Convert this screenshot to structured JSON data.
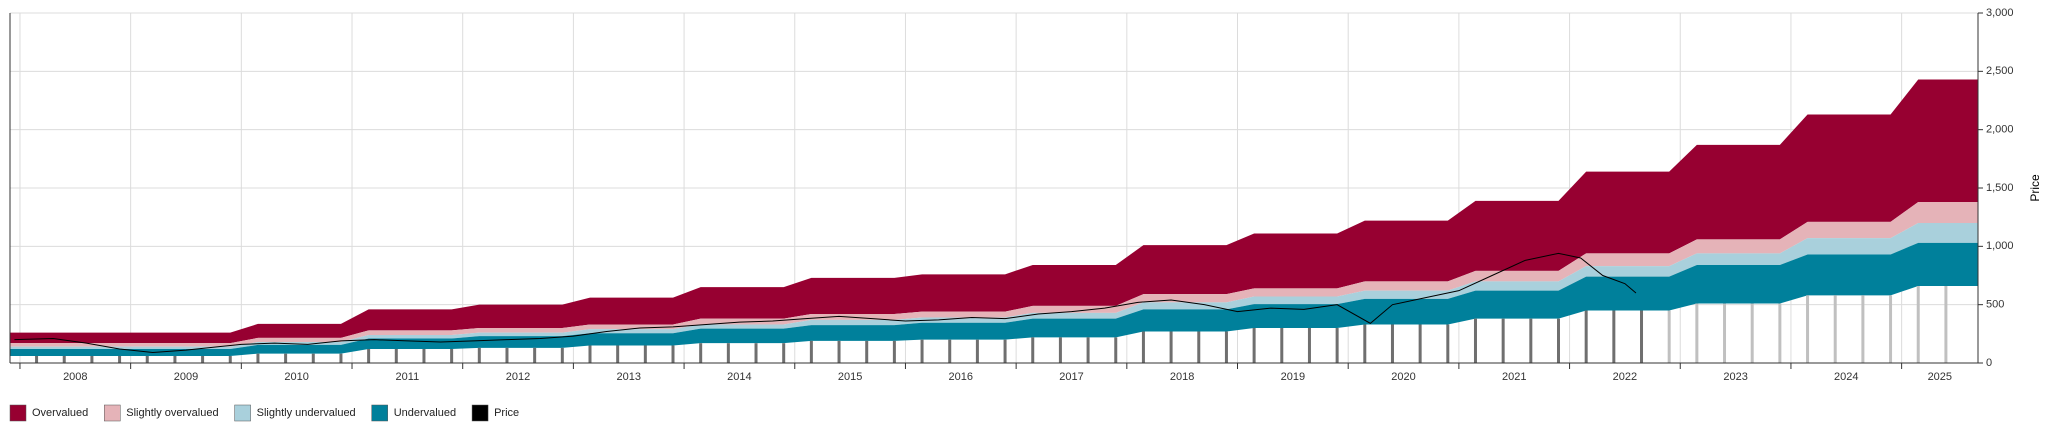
{
  "chart_data": {
    "type": "area",
    "x": [
      2007.91,
      2008.9,
      2009.15,
      2009.9,
      2010.15,
      2010.9,
      2011.15,
      2011.9,
      2012.15,
      2012.9,
      2013.15,
      2013.9,
      2014.15,
      2014.9,
      2015.15,
      2015.9,
      2016.15,
      2016.9,
      2017.15,
      2017.9,
      2018.15,
      2018.9,
      2019.15,
      2019.9,
      2020.15,
      2020.9,
      2021.15,
      2021.9,
      2022.15,
      2022.9,
      2023.15,
      2023.9,
      2024.15,
      2024.9,
      2025.15,
      2025.69
    ],
    "series": [
      {
        "name": "Overvalued",
        "color": "#970031",
        "values": [
          260,
          260,
          260,
          260,
          335,
          335,
          460,
          460,
          500,
          500,
          560,
          560,
          650,
          650,
          730,
          730,
          760,
          760,
          840,
          840,
          1010,
          1010,
          1110,
          1110,
          1220,
          1220,
          1390,
          1390,
          1640,
          1640,
          1870,
          1870,
          2130,
          2130,
          2430,
          2430
        ],
        "low": [
          170,
          170,
          170,
          170,
          215,
          215,
          280,
          280,
          300,
          300,
          330,
          330,
          380,
          380,
          420,
          420,
          440,
          440,
          490,
          490,
          590,
          590,
          640,
          640,
          700,
          700,
          790,
          790,
          940,
          940,
          1060,
          1060,
          1210,
          1210,
          1380,
          1380
        ]
      },
      {
        "name": "Slightly overvalued",
        "color": "#e5b3b8",
        "values": [
          170,
          170,
          170,
          170,
          215,
          215,
          280,
          280,
          300,
          300,
          330,
          330,
          380,
          380,
          420,
          420,
          440,
          440,
          490,
          490,
          590,
          590,
          640,
          640,
          700,
          700,
          790,
          790,
          940,
          940,
          1060,
          1060,
          1210,
          1210,
          1380,
          1380
        ],
        "low": [
          140,
          140,
          140,
          140,
          180,
          180,
          240,
          240,
          260,
          260,
          290,
          290,
          330,
          330,
          370,
          370,
          390,
          390,
          430,
          430,
          520,
          520,
          570,
          570,
          620,
          620,
          700,
          700,
          830,
          830,
          940,
          940,
          1070,
          1070,
          1200,
          1200
        ]
      },
      {
        "name": "Slightly undervalued",
        "color": "#a9d0dc",
        "values": [
          140,
          140,
          140,
          140,
          180,
          180,
          240,
          240,
          260,
          260,
          290,
          290,
          330,
          330,
          370,
          370,
          390,
          390,
          430,
          430,
          520,
          520,
          570,
          570,
          620,
          620,
          700,
          700,
          830,
          830,
          940,
          940,
          1070,
          1070,
          1200,
          1200
        ],
        "low": [
          120,
          120,
          120,
          120,
          155,
          155,
          210,
          210,
          230,
          230,
          255,
          255,
          295,
          295,
          325,
          325,
          345,
          345,
          380,
          380,
          460,
          460,
          505,
          505,
          550,
          550,
          620,
          620,
          740,
          740,
          840,
          840,
          930,
          930,
          1030,
          1030
        ]
      },
      {
        "name": "Undervalued",
        "color": "#00809b",
        "values": [
          120,
          120,
          120,
          120,
          155,
          155,
          210,
          210,
          230,
          230,
          255,
          255,
          295,
          295,
          325,
          325,
          345,
          345,
          380,
          380,
          460,
          460,
          505,
          505,
          550,
          550,
          620,
          620,
          740,
          740,
          840,
          840,
          930,
          930,
          1030,
          1030
        ],
        "low": [
          60,
          60,
          60,
          60,
          80,
          80,
          120,
          120,
          130,
          130,
          150,
          150,
          170,
          170,
          190,
          190,
          200,
          200,
          220,
          220,
          270,
          270,
          300,
          300,
          330,
          330,
          380,
          380,
          450,
          450,
          510,
          510,
          580,
          580,
          660,
          660
        ]
      },
      {
        "name": "Price",
        "color": "#000000",
        "x": [
          2007.95,
          2008.3,
          2008.6,
          2008.9,
          2009.2,
          2009.5,
          2009.8,
          2010.0,
          2010.3,
          2010.6,
          2010.9,
          2011.2,
          2011.5,
          2011.8,
          2012.1,
          2012.4,
          2012.7,
          2013.0,
          2013.3,
          2013.6,
          2013.9,
          2014.2,
          2014.5,
          2014.8,
          2015.1,
          2015.4,
          2015.7,
          2016.0,
          2016.3,
          2016.6,
          2016.9,
          2017.2,
          2017.5,
          2017.8,
          2018.1,
          2018.4,
          2018.7,
          2019.0,
          2019.3,
          2019.6,
          2019.9,
          2020.2,
          2020.4,
          2020.7,
          2021.0,
          2021.3,
          2021.6,
          2021.9,
          2022.1,
          2022.3,
          2022.5,
          2022.6
        ],
        "values": [
          200,
          210,
          170,
          120,
          90,
          110,
          140,
          160,
          170,
          160,
          190,
          200,
          190,
          180,
          190,
          200,
          210,
          230,
          270,
          300,
          310,
          330,
          350,
          360,
          380,
          400,
          380,
          360,
          370,
          390,
          380,
          420,
          440,
          470,
          520,
          540,
          500,
          440,
          470,
          460,
          500,
          340,
          500,
          560,
          620,
          750,
          880,
          940,
          900,
          750,
          680,
          600
        ]
      }
    ],
    "bars": [
      {
        "color": "#6f6f6f",
        "x": [
          2008.15,
          2008.4,
          2008.65,
          2008.9,
          2009.15,
          2009.4,
          2009.65,
          2009.9,
          2010.15,
          2010.4,
          2010.65,
          2010.9,
          2011.15,
          2011.4,
          2011.65,
          2011.9,
          2012.15,
          2012.4,
          2012.65,
          2012.9,
          2013.15,
          2013.4,
          2013.65,
          2013.9,
          2014.15,
          2014.4,
          2014.65,
          2014.9,
          2015.15,
          2015.4,
          2015.65,
          2015.9,
          2016.15,
          2016.4,
          2016.65,
          2016.9,
          2017.15,
          2017.4,
          2017.65,
          2017.9,
          2018.15,
          2018.4,
          2018.65,
          2018.9,
          2019.15,
          2019.4,
          2019.65,
          2019.9,
          2020.15,
          2020.4,
          2020.65,
          2020.9,
          2021.15,
          2021.4,
          2021.65,
          2021.9,
          2022.15,
          2022.4,
          2022.65
        ],
        "values": [
          60,
          60,
          60,
          60,
          60,
          60,
          60,
          60,
          80,
          80,
          80,
          80,
          120,
          120,
          120,
          120,
          130,
          130,
          130,
          130,
          150,
          150,
          150,
          150,
          170,
          170,
          170,
          170,
          190,
          190,
          190,
          190,
          200,
          200,
          200,
          200,
          220,
          220,
          220,
          220,
          270,
          270,
          270,
          270,
          300,
          300,
          300,
          300,
          330,
          330,
          330,
          330,
          380,
          380,
          380,
          380,
          450,
          450,
          450
        ]
      },
      {
        "color": "#c0c0c0",
        "x": [
          2022.9,
          2023.15,
          2023.4,
          2023.65,
          2023.9,
          2024.15,
          2024.4,
          2024.65,
          2024.9,
          2025.15,
          2025.4
        ],
        "values": [
          450,
          510,
          510,
          510,
          510,
          580,
          580,
          580,
          580,
          660,
          660
        ]
      }
    ],
    "xlim": [
      2007.91,
      2025.69
    ],
    "xticks": [
      2008,
      2009,
      2010,
      2011,
      2012,
      2013,
      2014,
      2015,
      2016,
      2017,
      2018,
      2019,
      2020,
      2021,
      2022,
      2023,
      2024,
      2025
    ],
    "ylim": [
      0,
      3000
    ],
    "yticks": [
      0,
      500,
      {
        "value": 1000,
        "label": "1,000"
      },
      {
        "value": 1500,
        "label": "1,500"
      },
      {
        "value": 2000,
        "label": "2,000"
      },
      {
        "value": 2500,
        "label": "2,500"
      },
      {
        "value": 3000,
        "label": "3,000"
      }
    ],
    "y_label": "Price",
    "grid": true
  }
}
